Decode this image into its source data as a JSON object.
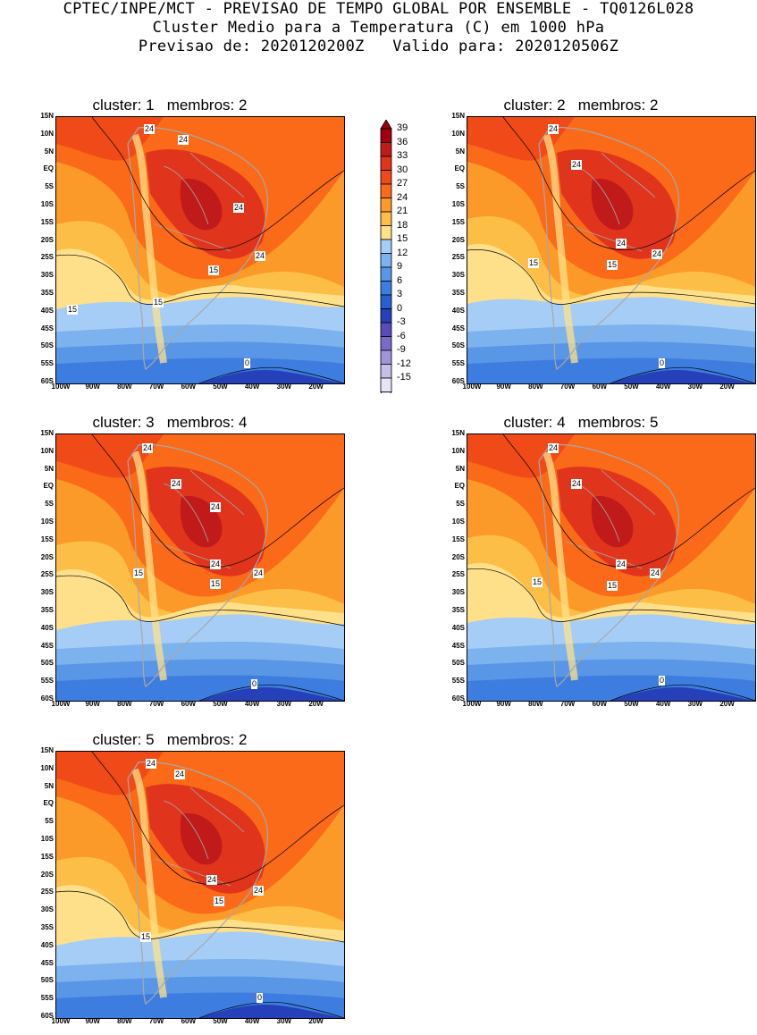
{
  "header": {
    "line1": "CPTEC/INPE/MCT - PREVISAO DE TEMPO GLOBAL POR ENSEMBLE - TQ0126L028",
    "line2": "Cluster Medio para a Temperatura (C) em 1000 hPa",
    "line3": "Previsao de: 2020120200Z   Valido para: 2020120506Z"
  },
  "panels": [
    {
      "title": "cluster: 1   membros: 2",
      "labels": [
        "24",
        "24",
        "24",
        "24",
        "15",
        "15",
        "15",
        "0"
      ]
    },
    {
      "title": "cluster: 2   membros: 2",
      "labels": [
        "24",
        "24",
        "24",
        "24",
        "15",
        "15",
        "0"
      ]
    },
    {
      "title": "cluster: 3   membros: 4",
      "labels": [
        "24",
        "24",
        "24",
        "24",
        "24",
        "15",
        "15",
        "0"
      ]
    },
    {
      "title": "cluster: 4   membros: 5",
      "labels": [
        "24",
        "24",
        "24",
        "24",
        "15",
        "15",
        "0"
      ]
    },
    {
      "title": "cluster: 5   membros: 2",
      "labels": [
        "24",
        "24",
        "24",
        "24",
        "15",
        "15",
        "0"
      ]
    }
  ],
  "axis": {
    "lat_ticks": [
      "15N",
      "10N",
      "5N",
      "EQ",
      "5S",
      "10S",
      "15S",
      "20S",
      "25S",
      "30S",
      "35S",
      "40S",
      "45S",
      "50S",
      "55S",
      "60S"
    ],
    "lon_ticks": [
      "100W",
      "90W",
      "80W",
      "70W",
      "60W",
      "50W",
      "40W",
      "30W",
      "20W"
    ]
  },
  "legend": {
    "labels": [
      "39",
      "36",
      "33",
      "30",
      "27",
      "24",
      "21",
      "18",
      "15",
      "12",
      "9",
      "6",
      "3",
      "0",
      "-3",
      "-6",
      "-9",
      "-12",
      "-15"
    ],
    "colors": [
      "#a0000f",
      "#c01a1a",
      "#e0341c",
      "#f04a18",
      "#fa6a18",
      "#fb9a28",
      "#fdbe48",
      "#ffe08a",
      "#a6cdf5",
      "#7cb2ee",
      "#5996e6",
      "#3d7de0",
      "#2a5fcf",
      "#2540b8",
      "#5a4bb8",
      "#7c6ac8",
      "#a195d8",
      "#c7bfe8",
      "#e8e4f6"
    ]
  }
}
